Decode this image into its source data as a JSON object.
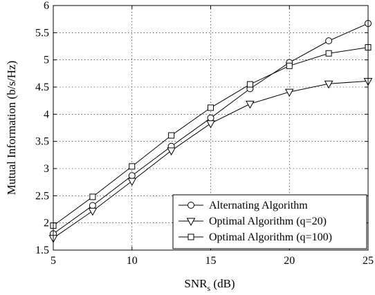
{
  "chart_data": {
    "type": "line",
    "xlabel": "SNR",
    "xlabel_subscript": "s",
    "xlabel_suffix": " (dB)",
    "ylabel": "Mutual Information (b/s/Hz)",
    "xlim": [
      5,
      25
    ],
    "ylim": [
      1.5,
      6
    ],
    "xticks": [
      5,
      10,
      15,
      20,
      25
    ],
    "xtick_labels": [
      "5",
      "10",
      "15",
      "20",
      "25"
    ],
    "yticks": [
      1.5,
      2,
      2.5,
      3,
      3.5,
      4,
      4.5,
      5,
      5.5,
      6
    ],
    "ytick_labels": [
      "1.5",
      "2",
      "2.5",
      "3",
      "3.5",
      "4",
      "4.5",
      "5",
      "5.5",
      "6"
    ],
    "grid": true,
    "legend_position": "bottom-right",
    "x": [
      5,
      7.5,
      10,
      12.5,
      15,
      17.5,
      20,
      22.5,
      25
    ],
    "series": [
      {
        "name": "Alternating Algorithm",
        "marker": "circle",
        "values": [
          1.8,
          2.32,
          2.87,
          3.41,
          3.93,
          4.47,
          4.95,
          5.35,
          5.67
        ]
      },
      {
        "name": "Optimal Algorithm (q=20)",
        "marker": "triangle-down",
        "values": [
          1.72,
          2.22,
          2.77,
          3.33,
          3.83,
          4.19,
          4.41,
          4.56,
          4.61
        ]
      },
      {
        "name": "Optimal Algorithm (q=100)",
        "marker": "square",
        "values": [
          1.95,
          2.48,
          3.04,
          3.61,
          4.12,
          4.55,
          4.89,
          5.12,
          5.23
        ]
      }
    ]
  }
}
